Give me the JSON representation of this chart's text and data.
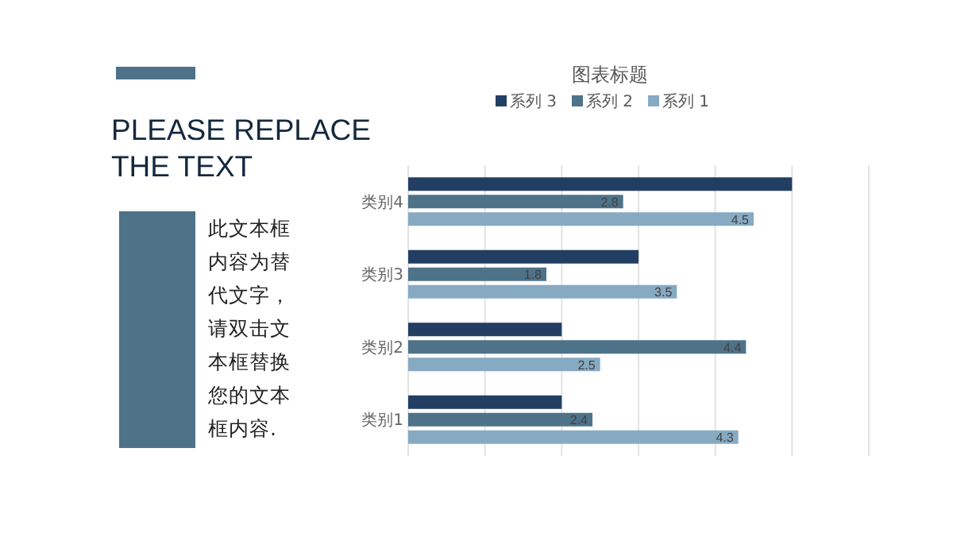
{
  "chart_data": [
    {
      "type": "other",
      "title": "PLEASE REPLACE THE TEXT",
      "annotations": [
        "此文本框内容为替代文字，请双击文本框替换您的文本框内容."
      ]
    },
    {
      "type": "bar",
      "orientation": "horizontal",
      "title": "图表标题",
      "categories": [
        "类别4",
        "类别3",
        "类别2",
        "类别1"
      ],
      "series": [
        {
          "name": "系列 3",
          "color": "#223f63",
          "values": [
            5,
            3,
            2,
            2
          ]
        },
        {
          "name": "系列 2",
          "color": "#4e7389",
          "values": [
            2.8,
            1.8,
            4.4,
            2.4
          ],
          "value_labels": [
            "2.8",
            "1.8",
            "4.4",
            "2.4"
          ]
        },
        {
          "name": "系列 1",
          "color": "#87aac3",
          "values": [
            4.5,
            3.5,
            2.5,
            4.3
          ],
          "value_labels": [
            "4.5",
            "3.5",
            "2.5",
            "4.3"
          ]
        }
      ],
      "xlim": [
        0,
        6
      ],
      "xticks": [
        {
          "value": 0,
          "label": null
        },
        {
          "value": 1,
          "label": null
        },
        {
          "value": 2,
          "label": null
        },
        {
          "value": 3,
          "label": null
        },
        {
          "value": 4,
          "label": null
        },
        {
          "value": 5,
          "label": null
        },
        {
          "value": 6,
          "label": null
        }
      ],
      "grid": "x",
      "legend": "top",
      "tick_labels": "y"
    }
  ]
}
